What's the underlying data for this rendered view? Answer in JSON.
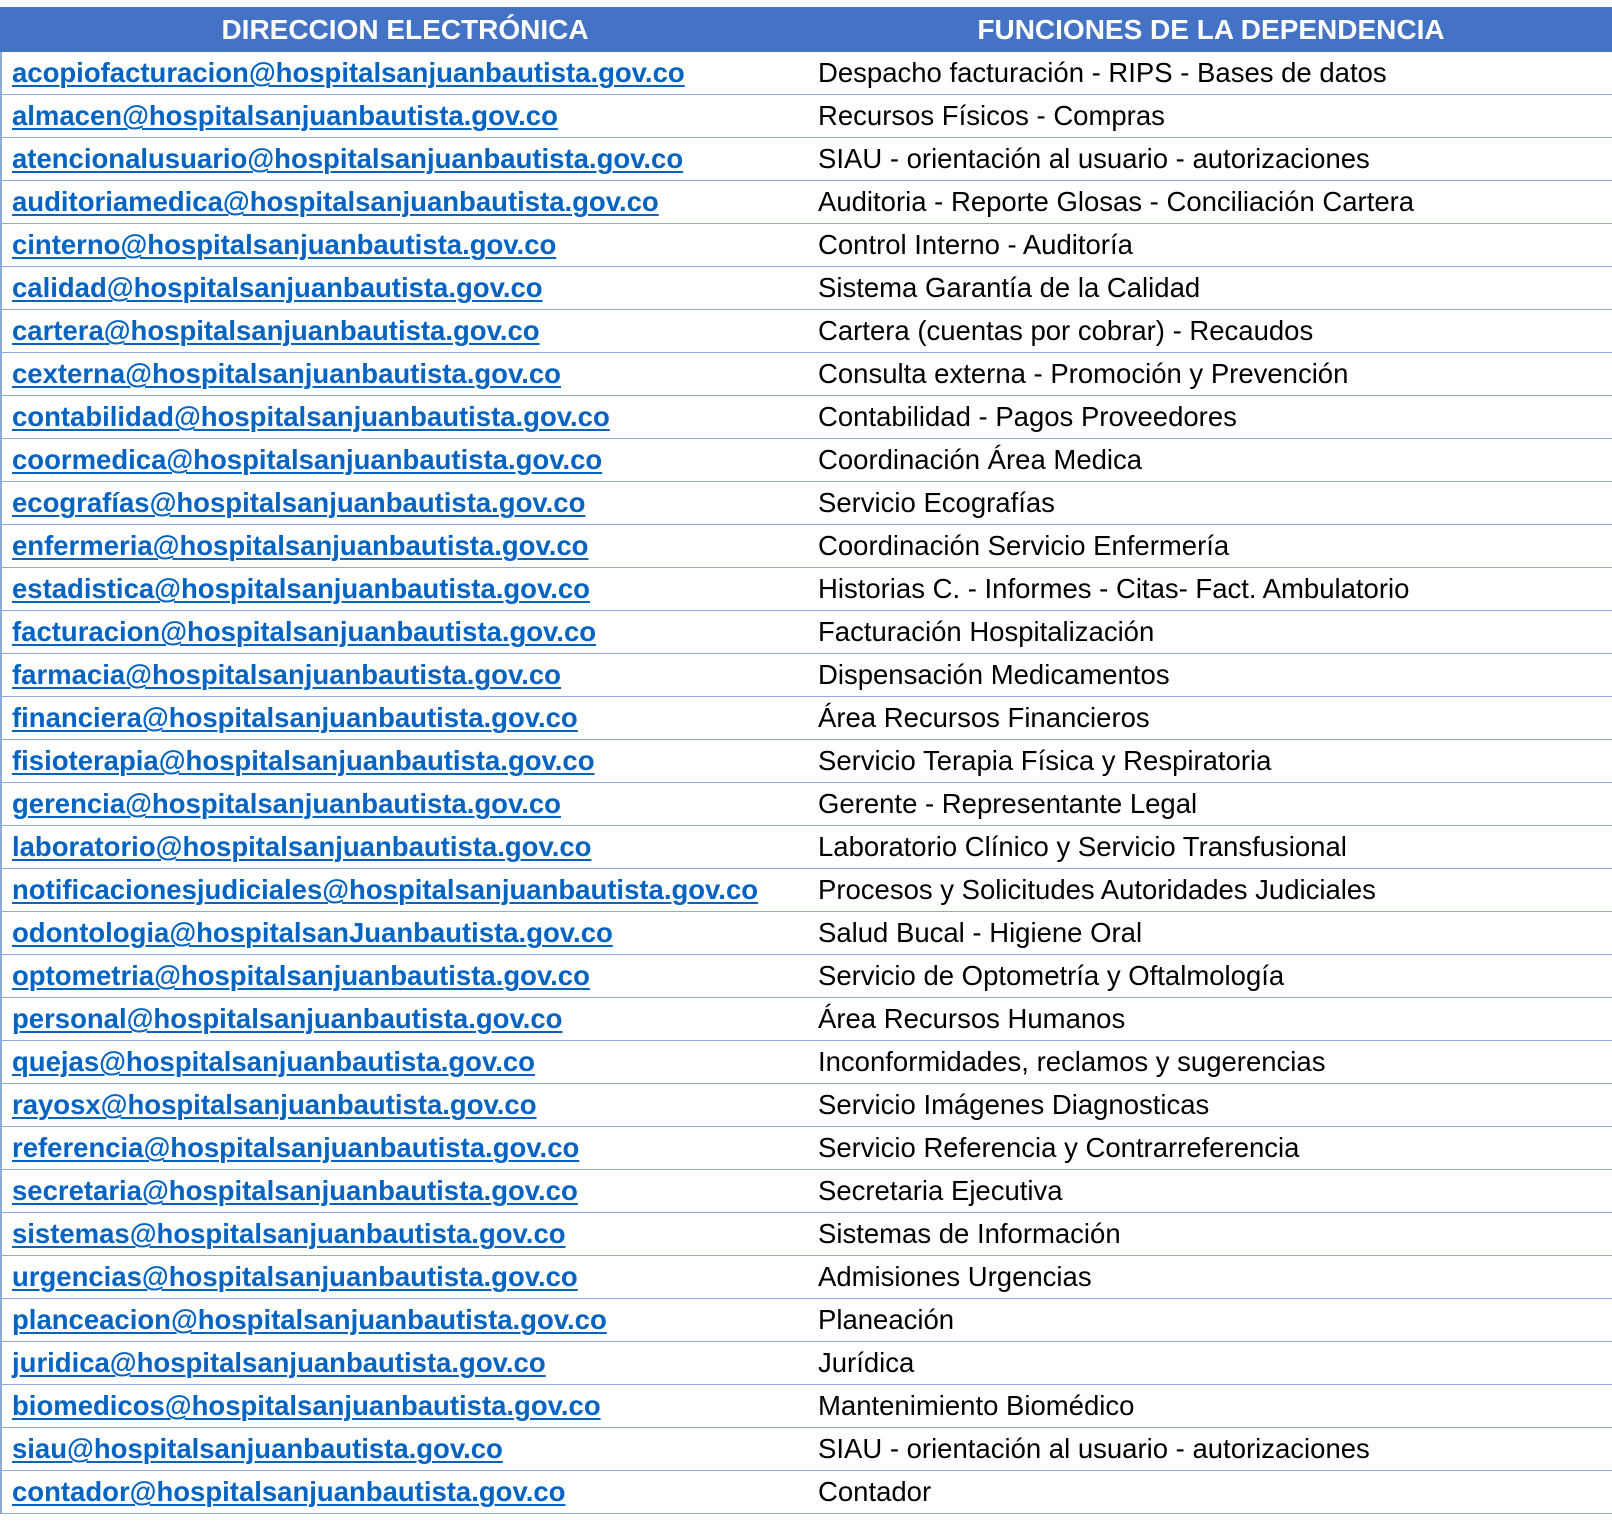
{
  "headers": {
    "email": "DIRECCION ELECTRÓNICA",
    "function": "FUNCIONES DE LA DEPENDENCIA"
  },
  "rows": [
    {
      "email": "acopiofacturacion@hospitalsanjuanbautista.gov.co",
      "function": "Despacho facturación -  RIPS -  Bases de datos"
    },
    {
      "email": "almacen@hospitalsanjuanbautista.gov.co",
      "function": "Recursos Físicos - Compras"
    },
    {
      "email": "atencionalusuario@hospitalsanjuanbautista.gov.co",
      "function": "SIAU - orientación al usuario - autorizaciones"
    },
    {
      "email": "auditoriamedica@hospitalsanjuanbautista.gov.co",
      "function": "Auditoria -  Reporte Glosas - Conciliación Cartera"
    },
    {
      "email": "cinterno@hospitalsanjuanbautista.gov.co",
      "function": "Control Interno - Auditoría"
    },
    {
      "email": "calidad@hospitalsanjuanbautista.gov.co",
      "function": "Sistema  Garantía de la Calidad"
    },
    {
      "email": "cartera@hospitalsanjuanbautista.gov.co",
      "function": "Cartera (cuentas  por cobrar)  -  Recaudos"
    },
    {
      "email": "cexterna@hospitalsanjuanbautista.gov.co",
      "function": "Consulta externa -  Promoción y Prevención"
    },
    {
      "email": "contabilidad@hospitalsanjuanbautista.gov.co",
      "function": "Contabilidad -  Pagos Proveedores"
    },
    {
      "email": "coormedica@hospitalsanjuanbautista.gov.co",
      "function": "Coordinación Área Medica"
    },
    {
      "email": "ecografías@hospitalsanjuanbautista.gov.co",
      "function": "Servicio Ecografías"
    },
    {
      "email": "enfermeria@hospitalsanjuanbautista.gov.co",
      "function": "Coordinación Servicio Enfermería"
    },
    {
      "email": "estadistica@hospitalsanjuanbautista.gov.co",
      "function": "Historias C. -  Informes - Citas- Fact. Ambulatorio"
    },
    {
      "email": "facturacion@hospitalsanjuanbautista.gov.co",
      "function": "Facturación Hospitalización"
    },
    {
      "email": "farmacia@hospitalsanjuanbautista.gov.co",
      "function": "Dispensación Medicamentos"
    },
    {
      "email": "financiera@hospitalsanjuanbautista.gov.co",
      "function": "Área Recursos Financieros"
    },
    {
      "email": "fisioterapia@hospitalsanjuanbautista.gov.co",
      "function": "Servicio Terapia Física y Respiratoria"
    },
    {
      "email": "gerencia@hospitalsanjuanbautista.gov.co",
      "function": "Gerente -  Representante Legal"
    },
    {
      "email": "laboratorio@hospitalsanjuanbautista.gov.co",
      "function": "Laboratorio Clínico y Servicio Transfusional"
    },
    {
      "email": "notificacionesjudiciales@hospitalsanjuanbautista.gov.co",
      "function": "Procesos y Solicitudes Autoridades Judiciales"
    },
    {
      "email": "odontologia@hospitalsanJuanbautista.gov.co",
      "function": "Salud Bucal -  Higiene Oral"
    },
    {
      "email": "optometria@hospitalsanjuanbautista.gov.co",
      "function": "Servicio de Optometría y Oftalmología"
    },
    {
      "email": "personal@hospitalsanjuanbautista.gov.co",
      "function": "Área Recursos Humanos"
    },
    {
      "email": "quejas@hospitalsanjuanbautista.gov.co",
      "function": "Inconformidades, reclamos y sugerencias"
    },
    {
      "email": "rayosx@hospitalsanjuanbautista.gov.co",
      "function": "Servicio Imágenes Diagnosticas"
    },
    {
      "email": "referencia@hospitalsanjuanbautista.gov.co",
      "function": "Servicio Referencia y Contrarreferencia"
    },
    {
      "email": "secretaria@hospitalsanjuanbautista.gov.co",
      "function": "Secretaria  Ejecutiva"
    },
    {
      "email": "sistemas@hospitalsanjuanbautista.gov.co",
      "function": "Sistemas de Información"
    },
    {
      "email": "urgencias@hospitalsanjuanbautista.gov.co",
      "function": "Admisiones Urgencias"
    },
    {
      "email": "planceacion@hospitalsanjuanbautista.gov.co",
      "function": "Planeación"
    },
    {
      "email": "juridica@hospitalsanjuanbautista.gov.co",
      "function": "Jurídica"
    },
    {
      "email": "biomedicos@hospitalsanjuanbautista.gov.co",
      "function": "Mantenimiento Biomédico"
    },
    {
      "email": "siau@hospitalsanjuanbautista.gov.co",
      "function": "SIAU - orientación al usuario - autorizaciones"
    },
    {
      "email": "contador@hospitalsanjuanbautista.gov.co",
      "function": "Contador"
    }
  ],
  "colors": {
    "header_bg": "#4472c4",
    "header_text": "#ffffff",
    "link": "#0563c1",
    "row_border": "#8eaadb"
  }
}
